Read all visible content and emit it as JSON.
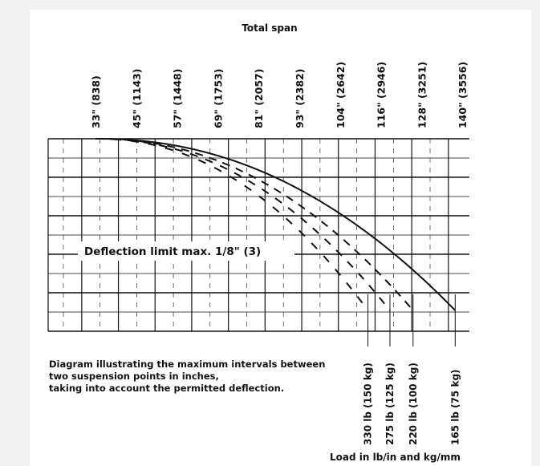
{
  "chart_data": {
    "type": "line",
    "title": "Total span",
    "x_ticks": [
      "33\" (838)",
      "45\" (1143)",
      "57\" (1448)",
      "69\" (1753)",
      "81\" (2057)",
      "93\" (2382)",
      "104\" (2642)",
      "116\" (2946)",
      "128\" (3251)",
      "140\" (3556)"
    ],
    "x_unit": "in",
    "annotation": "Deflection limit max. 1/8\" (3)",
    "caption": "Diagram illustrating the maximum intervals between two suspension points in inches, taking into account the permitted deflection.",
    "legend_title": "Load in lb/in and kg/mm",
    "series": [
      {
        "name": "330 lb (150 kg)",
        "end_span_in": 107.3
      },
      {
        "name": "275 lb (125 kg)",
        "end_span_in": 113.3
      },
      {
        "name": "220 lb (100 kg)",
        "end_span_in": 119.6
      },
      {
        "name": "165 lb (75 kg)",
        "end_span_in": 131.1
      }
    ]
  },
  "colors": {
    "background": "#f1f1f1",
    "plot_background": "#ffffff",
    "ink": "#111111"
  }
}
